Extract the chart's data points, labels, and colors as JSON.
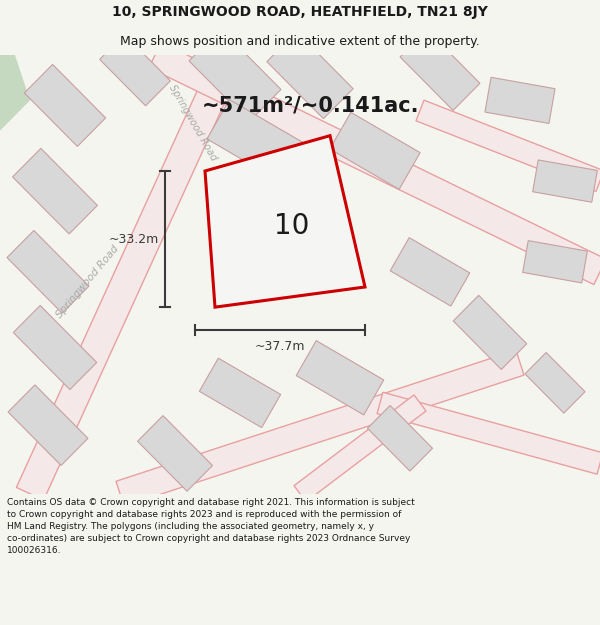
{
  "title_line1": "10, SPRINGWOOD ROAD, HEATHFIELD, TN21 8JY",
  "title_line2": "Map shows position and indicative extent of the property.",
  "area_text": "~571m²/~0.141ac.",
  "label_number": "10",
  "dim_width": "~37.7m",
  "dim_height": "~33.2m",
  "road_label_left": "Springwood Road",
  "road_label_mid": "Springwood Road",
  "footer_text": "Contains OS data © Crown copyright and database right 2021. This information is subject to Crown copyright and database rights 2023 and is reproduced with the permission of HM Land Registry. The polygons (including the associated geometry, namely x, y co-ordinates) are subject to Crown copyright and database rights 2023 Ordnance Survey 100026316.",
  "bg_color": "#f5f5f0",
  "map_bg": "#f9f8f6",
  "building_fill": "#d8d8d8",
  "building_edge": "#c8a0a0",
  "road_edge": "#e8a0a0",
  "road_fill": "#f5e8e8",
  "highlight_color": "#cc0000",
  "highlight_fill": "#f5f5f3",
  "green_patch": "#c5d8c0",
  "dim_line_color": "#3a3a3a",
  "text_color": "#1a1a1a",
  "road_text_color": "#aaaaaa",
  "title_fontsize": 10,
  "subtitle_fontsize": 9,
  "area_fontsize": 15,
  "number_fontsize": 20,
  "dim_fontsize": 9,
  "road_label_fontsize": 7.5,
  "footer_fontsize": 6.5
}
